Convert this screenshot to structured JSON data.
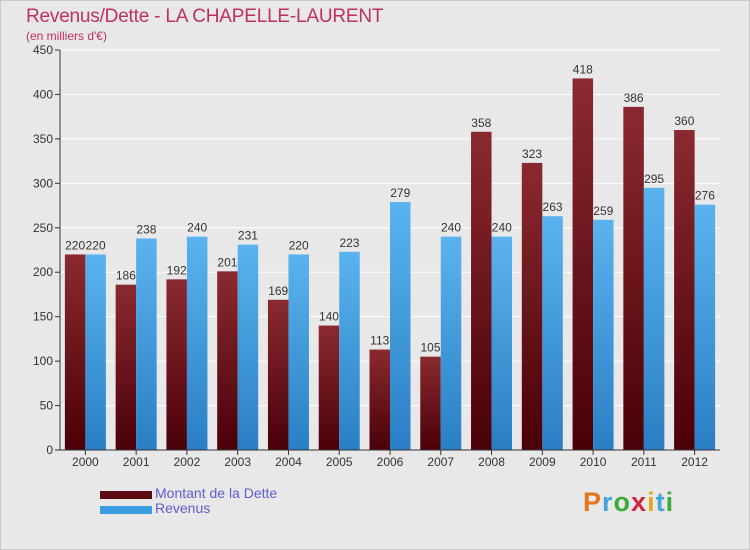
{
  "title": "Revenus/Dette - LA CHAPELLE-LAURENT",
  "subtitle": "(en milliers d'€)",
  "brand": {
    "letters": [
      "P",
      "r",
      "o",
      "x",
      "i",
      "t",
      "i"
    ],
    "colors": [
      "#e8751a",
      "#46a4dc",
      "#3eaa3a",
      "#d0283c",
      "#e6a817",
      "#46a4dc",
      "#3eaa3a"
    ]
  },
  "colors": {
    "dette": "#6b0e14",
    "revenus": "#3d9be0",
    "axis": "#333333",
    "grid": "#ffffff",
    "title": "#c0305e"
  },
  "chart_data": {
    "type": "bar",
    "categories": [
      "2000",
      "2001",
      "2002",
      "2003",
      "2004",
      "2005",
      "2006",
      "2007",
      "2008",
      "2009",
      "2010",
      "2011",
      "2012"
    ],
    "series": [
      {
        "name": "Montant de la Dette",
        "values": [
          220,
          186,
          192,
          201,
          169,
          140,
          113,
          105,
          358,
          323,
          418,
          386,
          360
        ]
      },
      {
        "name": "Revenus",
        "values": [
          220,
          238,
          240,
          231,
          220,
          223,
          279,
          240,
          240,
          263,
          259,
          295,
          276
        ]
      }
    ],
    "ylim": [
      0,
      450
    ],
    "yticks": [
      0,
      50,
      100,
      150,
      200,
      250,
      300,
      350,
      400,
      450
    ],
    "grid": true,
    "legend": "bottom-left"
  }
}
